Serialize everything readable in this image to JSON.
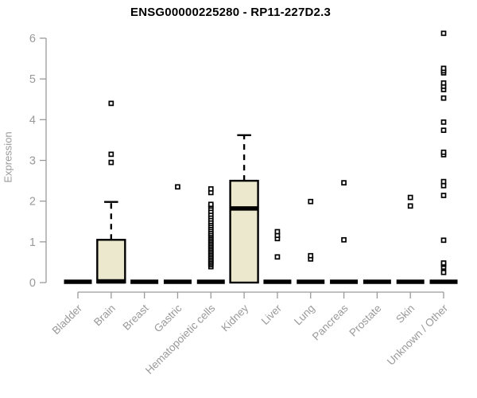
{
  "chart": {
    "title": "ENSG00000225280 - RP11-227D2.3",
    "ylabel": "Expression"
  },
  "colors": {
    "box_fill": "#ece8cd",
    "box_stroke": "#000000",
    "axis": "#9a9a9a",
    "label_text": "#999999",
    "title_text": "#000000",
    "point_fill": "#ffffff"
  },
  "chart_data": {
    "type": "boxplot",
    "title": "ENSG00000225280 - RP11-227D2.3",
    "xlabel": "",
    "ylabel": "Expression",
    "ylim": [
      0,
      6
    ],
    "yticks": [
      0,
      1,
      2,
      3,
      4,
      5,
      6
    ],
    "grid": false,
    "legend": false,
    "categories": [
      "Bladder",
      "Brain",
      "Breast",
      "Gastric",
      "Hematopoietic cells",
      "Kidney",
      "Liver",
      "Lung",
      "Pancreas",
      "Prostate",
      "Skin",
      "Unknown / Other"
    ],
    "boxes": [
      {
        "category": "Bladder",
        "q1": 0,
        "median": 0.02,
        "q3": 0,
        "whisker_low": 0,
        "whisker_high": 0,
        "outliers": []
      },
      {
        "category": "Brain",
        "q1": 0,
        "median": 0.03,
        "q3": 1.05,
        "whisker_low": 0,
        "whisker_high": 1.98,
        "outliers": [
          2.95,
          3.15,
          4.4
        ]
      },
      {
        "category": "Breast",
        "q1": 0,
        "median": 0.02,
        "q3": 0,
        "whisker_low": 0,
        "whisker_high": 0,
        "outliers": []
      },
      {
        "category": "Gastric",
        "q1": 0,
        "median": 0.02,
        "q3": 0,
        "whisker_low": 0,
        "whisker_high": 0,
        "outliers": [
          2.35
        ]
      },
      {
        "category": "Hematopoietic cells",
        "q1": 0,
        "median": 0.02,
        "q3": 0,
        "whisker_low": 0,
        "whisker_high": 0,
        "outliers": [
          0.39,
          0.44,
          0.48,
          0.52,
          0.56,
          0.6,
          0.64,
          0.68,
          0.72,
          0.76,
          0.8,
          0.84,
          0.88,
          0.92,
          0.96,
          1.0,
          1.04,
          1.08,
          1.12,
          1.16,
          1.2,
          1.25,
          1.3,
          1.35,
          1.4,
          1.45,
          1.5,
          1.56,
          1.62,
          1.68,
          1.75,
          1.82,
          1.88,
          1.92,
          2.21,
          2.3
        ]
      },
      {
        "category": "Kidney",
        "q1": 0,
        "median": 1.82,
        "q3": 2.5,
        "whisker_low": 0,
        "whisker_high": 3.62,
        "outliers": []
      },
      {
        "category": "Liver",
        "q1": 0,
        "median": 0.02,
        "q3": 0,
        "whisker_low": 0,
        "whisker_high": 0,
        "outliers": [
          0.63,
          1.08,
          1.16,
          1.25
        ]
      },
      {
        "category": "Lung",
        "q1": 0,
        "median": 0.02,
        "q3": 0,
        "whisker_low": 0,
        "whisker_high": 0,
        "outliers": [
          0.58,
          0.66,
          1.99
        ]
      },
      {
        "category": "Pancreas",
        "q1": 0,
        "median": 0.02,
        "q3": 0,
        "whisker_low": 0,
        "whisker_high": 0,
        "outliers": [
          1.05,
          2.45
        ]
      },
      {
        "category": "Prostate",
        "q1": 0,
        "median": 0.02,
        "q3": 0,
        "whisker_low": 0,
        "whisker_high": 0,
        "outliers": []
      },
      {
        "category": "Skin",
        "q1": 0,
        "median": 0.02,
        "q3": 0,
        "whisker_low": 0,
        "whisker_high": 0,
        "outliers": [
          1.88,
          2.09
        ]
      },
      {
        "category": "Unknown / Other",
        "q1": 0,
        "median": 0.02,
        "q3": 0,
        "whisker_low": 0,
        "whisker_high": 0,
        "outliers": [
          0.25,
          0.38,
          0.45,
          0.48,
          1.04,
          2.14,
          2.38,
          2.48,
          3.14,
          3.2,
          3.74,
          3.94,
          4.53,
          4.74,
          4.82,
          4.9,
          5.15,
          5.2,
          5.26,
          6.12
        ]
      }
    ]
  }
}
